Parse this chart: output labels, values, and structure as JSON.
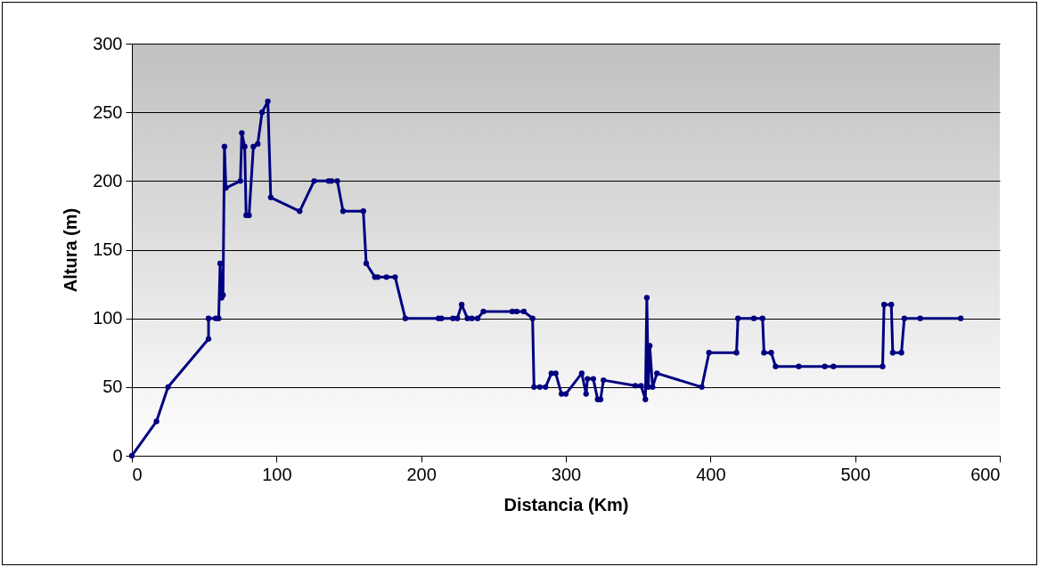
{
  "chart_data": {
    "type": "line",
    "xlabel": "Distancia (Km)",
    "ylabel": "Altura (m)",
    "xlim": [
      0,
      600
    ],
    "xticks": [
      0,
      100,
      200,
      300,
      400,
      500,
      600
    ],
    "ylim": [
      0,
      300
    ],
    "yticks": [
      0,
      50,
      100,
      150,
      200,
      250,
      300
    ],
    "grid": "y",
    "marker": "circle",
    "line_style": "solid",
    "series": [
      {
        "color": "#000080",
        "x": [
          0,
          17,
          25,
          53,
          53,
          58,
          60,
          61,
          62,
          63,
          64,
          65,
          75,
          76,
          78,
          79,
          81,
          84,
          87,
          90,
          94,
          96,
          116,
          126,
          136,
          138,
          142,
          146,
          160,
          162,
          168,
          170,
          176,
          182,
          189,
          212,
          214,
          222,
          225,
          228,
          232,
          235,
          239,
          243,
          263,
          266,
          271,
          277,
          278,
          282,
          286,
          290,
          293,
          297,
          300,
          311,
          314,
          315,
          319,
          322,
          324,
          326,
          348,
          352,
          355,
          356,
          357,
          358,
          360,
          363,
          394,
          399,
          418,
          419,
          430,
          436,
          437,
          442,
          445,
          461,
          479,
          485,
          519,
          520,
          525,
          526,
          532,
          534,
          545,
          573
        ],
        "values": [
          0,
          25,
          50,
          85,
          100,
          100,
          100,
          140,
          115,
          117,
          225,
          195,
          200,
          235,
          225,
          175,
          175,
          225,
          227,
          250,
          258,
          188,
          178,
          200,
          200,
          200,
          200,
          178,
          178,
          140,
          130,
          130,
          130,
          130,
          100,
          100,
          100,
          100,
          100,
          110,
          100,
          100,
          100,
          105,
          105,
          105,
          105,
          100,
          50,
          50,
          50,
          60,
          60,
          45,
          45,
          60,
          45,
          56,
          56,
          41,
          41,
          55,
          51,
          51,
          41,
          115,
          50,
          80,
          50,
          60,
          50,
          75,
          75,
          100,
          100,
          100,
          75,
          75,
          65,
          65,
          65,
          65,
          65,
          110,
          110,
          75,
          75,
          100,
          100,
          100
        ]
      }
    ]
  }
}
